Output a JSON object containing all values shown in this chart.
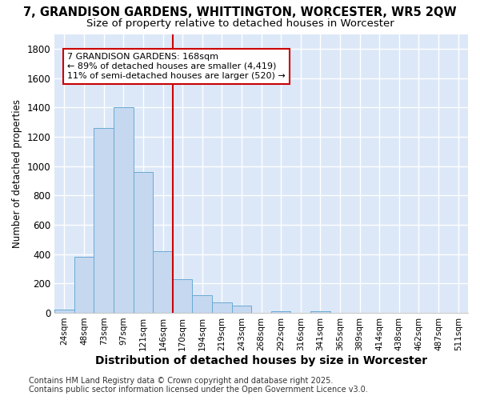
{
  "title1": "7, GRANDISON GARDENS, WHITTINGTON, WORCESTER, WR5 2QW",
  "title2": "Size of property relative to detached houses in Worcester",
  "xlabel": "Distribution of detached houses by size in Worcester",
  "ylabel": "Number of detached properties",
  "categories": [
    "24sqm",
    "48sqm",
    "73sqm",
    "97sqm",
    "121sqm",
    "146sqm",
    "170sqm",
    "194sqm",
    "219sqm",
    "243sqm",
    "268sqm",
    "292sqm",
    "316sqm",
    "341sqm",
    "365sqm",
    "389sqm",
    "414sqm",
    "438sqm",
    "462sqm",
    "487sqm",
    "511sqm"
  ],
  "values": [
    20,
    380,
    1260,
    1400,
    960,
    420,
    230,
    120,
    70,
    50,
    0,
    10,
    0,
    10,
    0,
    0,
    0,
    0,
    0,
    0,
    0
  ],
  "bar_color": "#c5d8f0",
  "bar_edge_color": "#6aaad4",
  "red_line_index": 6,
  "ylim": [
    0,
    1900
  ],
  "yticks": [
    0,
    200,
    400,
    600,
    800,
    1000,
    1200,
    1400,
    1600,
    1800
  ],
  "annotation_text": "7 GRANDISON GARDENS: 168sqm\n← 89% of detached houses are smaller (4,419)\n11% of semi-detached houses are larger (520) →",
  "annotation_box_color": "#ffffff",
  "annotation_box_edge": "#cc0000",
  "footnote": "Contains HM Land Registry data © Crown copyright and database right 2025.\nContains public sector information licensed under the Open Government Licence v3.0.",
  "fig_bg_color": "#ffffff",
  "plot_bg_color": "#dce8f8",
  "grid_color": "#ffffff",
  "title1_fontsize": 10.5,
  "title2_fontsize": 9.5,
  "xlabel_fontsize": 10,
  "ylabel_fontsize": 8.5,
  "footnote_fontsize": 7
}
